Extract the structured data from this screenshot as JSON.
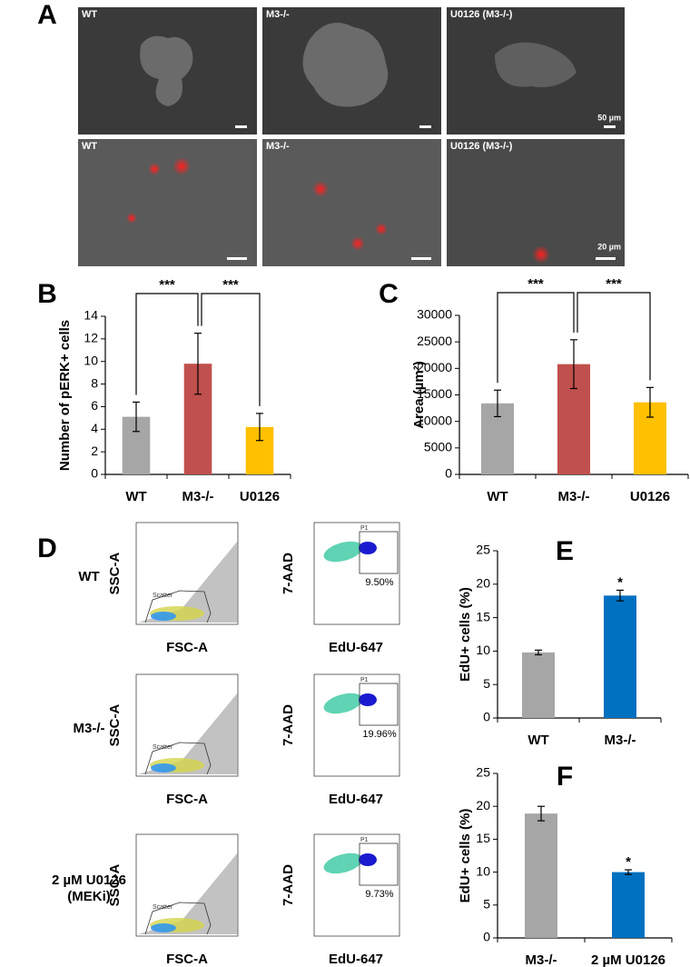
{
  "panel_labels": [
    "A",
    "B",
    "C",
    "D",
    "E",
    "F"
  ],
  "micrographs": {
    "top": [
      "WT",
      "M3-/-",
      "U0126 (M3-/-)"
    ],
    "top_scale": "50 µm",
    "bottom": [
      "WT",
      "M3-/-",
      "U0126 (M3-/-)"
    ],
    "bottom_scale": "20 µm"
  },
  "flow": {
    "row_labels": [
      [
        "WT"
      ],
      [
        "M3-/-"
      ],
      [
        "2 µM U0126",
        "(MEKi)"
      ]
    ],
    "scatter_x": "FSC-A",
    "scatter_y": "SSC-A",
    "scatter_gate": "Scatter",
    "edu_x": "EdU-647",
    "edu_y": "7-AAD",
    "edu_gate": "P1",
    "gate_percent": [
      "9.50%",
      "19.96%",
      "9.73%"
    ]
  },
  "chart_data": [
    {
      "type": "bar",
      "categories": [
        "WT",
        "M3-/-",
        "U0126"
      ],
      "values": [
        5.1,
        9.8,
        4.2
      ],
      "errors": [
        1.3,
        2.7,
        1.2
      ],
      "colors": [
        "#a6a6a6",
        "#c0504d",
        "#ffc000"
      ],
      "ylabel": "Number of pERK+ cells",
      "ylim": [
        0,
        14
      ],
      "yticks": [
        0,
        2,
        4,
        6,
        8,
        10,
        12,
        14
      ],
      "significance": [
        {
          "from": 0,
          "to": 1,
          "label": "***"
        },
        {
          "from": 1,
          "to": 2,
          "label": "***"
        }
      ]
    },
    {
      "type": "bar",
      "categories": [
        "WT",
        "M3-/-",
        "U0126"
      ],
      "values": [
        13400,
        20800,
        13600
      ],
      "errors": [
        2500,
        4600,
        2800
      ],
      "colors": [
        "#a6a6a6",
        "#c0504d",
        "#ffc000"
      ],
      "ylabel": "Area (µm²)",
      "ylim": [
        0,
        30000
      ],
      "yticks": [
        0,
        5000,
        10000,
        15000,
        20000,
        25000,
        30000
      ],
      "significance": [
        {
          "from": 0,
          "to": 1,
          "label": "***"
        },
        {
          "from": 1,
          "to": 2,
          "label": "***"
        }
      ]
    },
    {
      "type": "bar",
      "categories": [
        "WT",
        "M3-/-"
      ],
      "values": [
        9.8,
        18.3
      ],
      "errors": [
        0.35,
        0.8
      ],
      "colors": [
        "#a6a6a6",
        "#0070c0"
      ],
      "ylabel": "EdU+ cells (%)",
      "ylim": [
        0,
        25
      ],
      "yticks": [
        0,
        5,
        10,
        15,
        20,
        25
      ],
      "value_annotations": [
        null,
        "*"
      ]
    },
    {
      "type": "bar",
      "categories": [
        "M3-/-",
        "2 µM U0126"
      ],
      "values": [
        18.9,
        10.0
      ],
      "errors": [
        1.1,
        0.35
      ],
      "colors": [
        "#a6a6a6",
        "#0070c0"
      ],
      "ylabel": "EdU+ cells (%)",
      "ylim": [
        0,
        25
      ],
      "yticks": [
        0,
        5,
        10,
        15,
        20,
        25
      ],
      "value_annotations": [
        null,
        "*"
      ]
    }
  ]
}
